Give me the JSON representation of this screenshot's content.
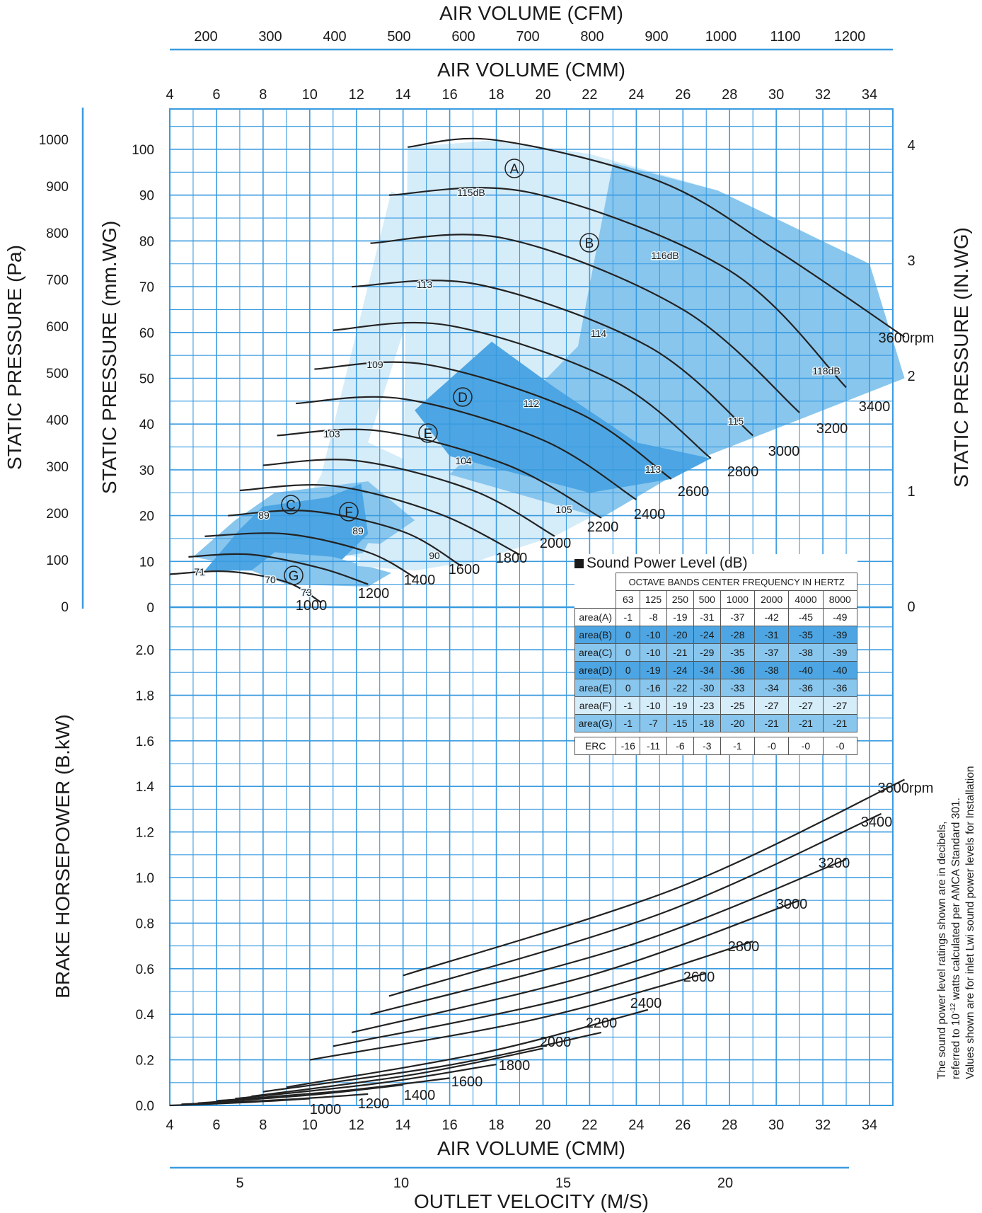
{
  "chart_data": {
    "type": "line",
    "top_axes": {
      "cfm_title": "AIR VOLUME (CFM)",
      "cfm_ticks": [
        "200",
        "300",
        "400",
        "500",
        "600",
        "700",
        "800",
        "900",
        "1000",
        "1100",
        "1200"
      ],
      "cmm_title": "AIR VOLUME (CMM)"
    },
    "x_axis": {
      "title": "AIR VOLUME (CMM)",
      "ticks": [
        "4",
        "6",
        "8",
        "10",
        "12",
        "14",
        "16",
        "18",
        "20",
        "22",
        "24",
        "26",
        "28",
        "30",
        "32",
        "34"
      ],
      "range": [
        4,
        35
      ]
    },
    "outlet_velocity_axis": {
      "title": "OUTLET VELOCITY (M/S)",
      "ticks": [
        "5",
        "10",
        "15",
        "20"
      ]
    },
    "pressure_axes": {
      "pa_title": "STATIC PRESSURE (Pa)",
      "pa_ticks": [
        "0",
        "100",
        "200",
        "300",
        "400",
        "500",
        "600",
        "700",
        "800",
        "900",
        "1000"
      ],
      "mmwg_title": "STATIC PRESSURE (mm.WG)",
      "mmwg_ticks": [
        "0",
        "10",
        "20",
        "30",
        "40",
        "50",
        "60",
        "70",
        "80",
        "90",
        "100"
      ],
      "inwg_title": "STATIC PRESSURE (IN.WG)",
      "inwg_ticks": [
        "0",
        "1",
        "2",
        "3",
        "4"
      ],
      "range_mmwg": [
        0,
        100
      ]
    },
    "power_axis": {
      "title": "BRAKE HORSEPOWER (B.kW)",
      "ticks": [
        "0.0",
        "0.2",
        "0.4",
        "0.6",
        "0.8",
        "1.0",
        "1.2",
        "1.4",
        "1.6",
        "1.8",
        "2.0"
      ],
      "range": [
        0,
        2.0
      ]
    },
    "grid": true,
    "pressure_curves": [
      {
        "rpm": "1000",
        "x": [
          4.0,
          6.5,
          9.0,
          10.5
        ],
        "y": [
          7.2,
          7.8,
          5.5,
          1.0
        ]
      },
      {
        "rpm": "1200",
        "x": [
          4.8,
          7.5,
          10.5,
          12.5
        ],
        "y": [
          11.0,
          11.5,
          8.5,
          5.0
        ]
      },
      {
        "rpm": "1400",
        "x": [
          5.5,
          9.0,
          12.5,
          14.5
        ],
        "y": [
          15.5,
          16.0,
          12.0,
          6.5
        ]
      },
      {
        "rpm": "1600",
        "x": [
          6.5,
          10.0,
          14.0,
          16.5
        ],
        "y": [
          20.0,
          21.0,
          16.5,
          9.0
        ]
      },
      {
        "rpm": "1800",
        "x": [
          7.0,
          11.0,
          15.5,
          19.0
        ],
        "y": [
          25.5,
          26.5,
          20.5,
          11.5
        ]
      },
      {
        "rpm": "2000",
        "x": [
          8.0,
          12.0,
          17.0,
          20.5
        ],
        "y": [
          31.0,
          32.0,
          25.5,
          15.5
        ]
      },
      {
        "rpm": "2200",
        "x": [
          8.6,
          13.0,
          18.5,
          22.5
        ],
        "y": [
          37.5,
          38.5,
          31.0,
          19.5
        ]
      },
      {
        "rpm": "2400",
        "x": [
          9.4,
          14.0,
          20.0,
          24.0
        ],
        "y": [
          44.5,
          45.5,
          36.5,
          23.5
        ]
      },
      {
        "rpm": "2600",
        "x": [
          10.2,
          15.0,
          21.5,
          25.5
        ],
        "y": [
          52.0,
          53.0,
          42.5,
          28.0
        ]
      },
      {
        "rpm": "2800",
        "x": [
          11.0,
          16.0,
          23.0,
          27.2
        ],
        "y": [
          60.5,
          61.5,
          49.5,
          32.5
        ]
      },
      {
        "rpm": "3000",
        "x": [
          11.8,
          17.2,
          24.5,
          29.0
        ],
        "y": [
          70.0,
          70.5,
          57.0,
          37.5
        ]
      },
      {
        "rpm": "3200",
        "x": [
          12.6,
          18.4,
          26.0,
          31.0
        ],
        "y": [
          79.5,
          80.5,
          65.0,
          42.5
        ]
      },
      {
        "rpm": "3400",
        "x": [
          13.4,
          19.5,
          28.0,
          33.0
        ],
        "y": [
          90.0,
          90.5,
          73.5,
          48.0
        ]
      },
      {
        "rpm": "3600",
        "x": [
          14.2,
          18.0,
          25.0,
          30.0,
          35.5
        ],
        "y": [
          100.5,
          102.0,
          93.0,
          78.0,
          59.0
        ]
      }
    ],
    "pressure_rpm_labels": [
      "1000",
      "1200",
      "1400",
      "1600",
      "1800",
      "2000",
      "2200",
      "2400",
      "2600",
      "2800",
      "3000",
      "3200",
      "3400",
      "3600rpm"
    ],
    "sound_labels": [
      "115dB",
      "116dB",
      "118dB",
      "113",
      "114",
      "109",
      "112",
      "103",
      "115",
      "113",
      "104",
      "105",
      "89",
      "90",
      "89",
      "71",
      "70",
      "73"
    ],
    "area_labels": [
      "A",
      "B",
      "C",
      "D",
      "E",
      "F",
      "G"
    ],
    "power_curves": [
      {
        "rpm": "1000",
        "x": [
          4.0,
          10.0
        ],
        "y": [
          0.0,
          0.03
        ]
      },
      {
        "rpm": "1200",
        "x": [
          4.5,
          12.5
        ],
        "y": [
          0.005,
          0.05
        ]
      },
      {
        "rpm": "1400",
        "x": [
          5.2,
          14.0
        ],
        "y": [
          0.01,
          0.09
        ]
      },
      {
        "rpm": "1600",
        "x": [
          6.0,
          16.0
        ],
        "y": [
          0.02,
          0.12
        ]
      },
      {
        "rpm": "1800",
        "x": [
          6.8,
          18.0
        ],
        "y": [
          0.03,
          0.18
        ]
      },
      {
        "rpm": "2000",
        "x": [
          7.5,
          20.0
        ],
        "y": [
          0.04,
          0.25
        ]
      },
      {
        "rpm": "2200",
        "x": [
          8.0,
          22.5
        ],
        "y": [
          0.06,
          0.32
        ]
      },
      {
        "rpm": "2400",
        "x": [
          9.0,
          24.5
        ],
        "y": [
          0.08,
          0.42
        ]
      },
      {
        "rpm": "2600",
        "x": [
          10.0,
          27.0
        ],
        "y": [
          0.2,
          0.58
        ]
      },
      {
        "rpm": "2800",
        "x": [
          11.0,
          29.0
        ],
        "y": [
          0.26,
          0.72
        ]
      },
      {
        "rpm": "3000",
        "x": [
          11.8,
          31.0
        ],
        "y": [
          0.32,
          0.9
        ]
      },
      {
        "rpm": "3200",
        "x": [
          12.6,
          33.0
        ],
        "y": [
          0.4,
          1.08
        ]
      },
      {
        "rpm": "3400",
        "x": [
          13.4,
          34.5
        ],
        "y": [
          0.48,
          1.28
        ]
      },
      {
        "rpm": "3600",
        "x": [
          14.0,
          35.5
        ],
        "y": [
          0.57,
          1.43
        ]
      }
    ],
    "power_rpm_labels": [
      "1000",
      "1200",
      "1400",
      "1600",
      "1800",
      "2000",
      "2200",
      "2400",
      "2600",
      "2800",
      "3000",
      "3200",
      "3400",
      "3600rpm"
    ],
    "colors": {
      "grid": "#3a9be0",
      "area_light": "#d5ecf9",
      "area_mid": "#88c6ee",
      "area_dark": "#4da6e3"
    }
  },
  "sound_table": {
    "title": "Sound Power Level (dB)",
    "header": "OCTAVE BANDS CENTER FREQUENCY IN HERTZ",
    "frequencies": [
      "63",
      "125",
      "250",
      "500",
      "1000",
      "2000",
      "4000",
      "8000"
    ],
    "rows": [
      {
        "label": "area",
        "area": "A",
        "values": [
          "-1",
          "-8",
          "-19",
          "-31",
          "-37",
          "-42",
          "-45",
          "-49"
        ],
        "fill": "#ffffff"
      },
      {
        "label": "area",
        "area": "B",
        "values": [
          "0",
          "-10",
          "-20",
          "-24",
          "-28",
          "-31",
          "-35",
          "-39"
        ],
        "fill": "#4da6e3"
      },
      {
        "label": "area",
        "area": "C",
        "values": [
          "0",
          "-10",
          "-21",
          "-29",
          "-35",
          "-37",
          "-38",
          "-39"
        ],
        "fill": "#88c6ee"
      },
      {
        "label": "area",
        "area": "D",
        "values": [
          "0",
          "-19",
          "-24",
          "-34",
          "-36",
          "-38",
          "-40",
          "-40"
        ],
        "fill": "#4da6e3"
      },
      {
        "label": "area",
        "area": "E",
        "values": [
          "0",
          "-16",
          "-22",
          "-30",
          "-33",
          "-34",
          "-36",
          "-36"
        ],
        "fill": "#88c6ee"
      },
      {
        "label": "area",
        "area": "F",
        "values": [
          "-1",
          "-10",
          "-19",
          "-23",
          "-25",
          "-27",
          "-27",
          "-27"
        ],
        "fill": "#d5ecf9"
      },
      {
        "label": "area",
        "area": "G",
        "values": [
          "-1",
          "-7",
          "-15",
          "-18",
          "-20",
          "-21",
          "-21",
          "-21"
        ],
        "fill": "#88c6ee"
      }
    ],
    "erc": {
      "label": "ERC",
      "values": [
        "-16",
        "-11",
        "-6",
        "-3",
        "-1",
        "-0",
        "-0",
        "-0"
      ]
    }
  },
  "side_note": {
    "lines": [
      "The sound power level ratings shown are in decibels,",
      "referred to 10",
      "-12",
      " watts calculated per AMCA Standard 301.",
      "Values shown are for inlet Lwi sound power levels for Installation"
    ]
  }
}
